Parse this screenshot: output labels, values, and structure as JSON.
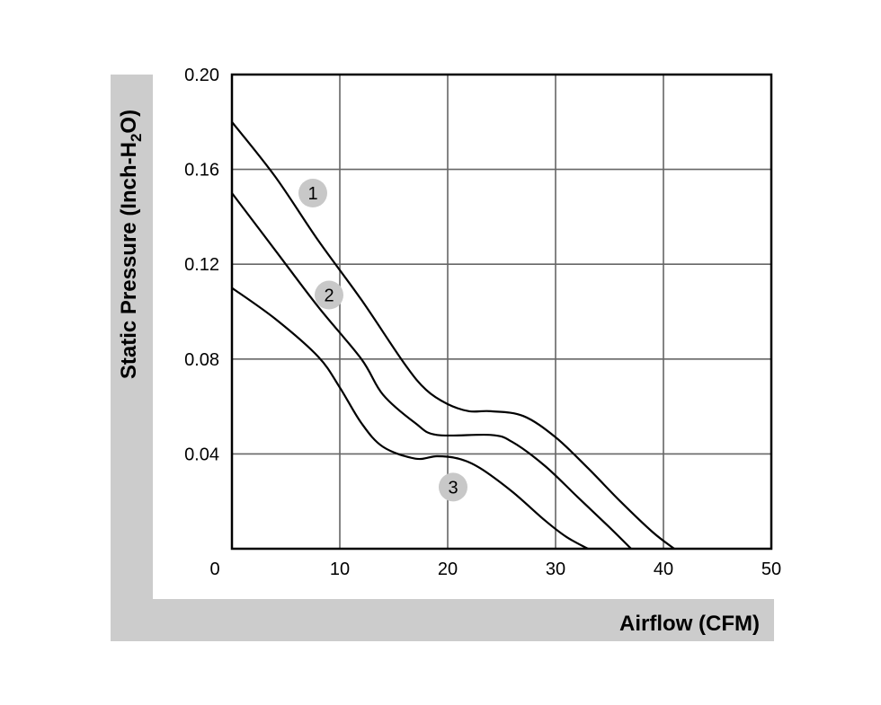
{
  "chart_data": {
    "type": "line",
    "xlabel": "Airflow (CFM)",
    "ylabel": {
      "main": "Static Pressure (Inch-H",
      "sub": "2",
      "end": "O)"
    },
    "xlim": [
      0,
      50
    ],
    "ylim": [
      0,
      0.2
    ],
    "x_ticks": [
      "0",
      "10",
      "20",
      "30",
      "40",
      "50"
    ],
    "y_ticks": [
      "0.04",
      "0.08",
      "0.12",
      "0.16",
      "0.20"
    ],
    "grid": true,
    "colors": {
      "frame": "#cccccc",
      "grid": "#666666",
      "curve": "#000000",
      "badge": "#c8c8c8"
    },
    "series": [
      {
        "label": "1",
        "label_at": [
          7.5,
          0.15
        ],
        "points": [
          [
            0,
            0.18
          ],
          [
            4,
            0.157
          ],
          [
            8,
            0.13
          ],
          [
            12,
            0.105
          ],
          [
            16,
            0.078
          ],
          [
            18,
            0.067
          ],
          [
            20,
            0.061
          ],
          [
            22,
            0.058
          ],
          [
            24,
            0.058
          ],
          [
            27,
            0.056
          ],
          [
            30,
            0.047
          ],
          [
            33,
            0.034
          ],
          [
            36,
            0.02
          ],
          [
            39,
            0.007
          ],
          [
            41,
            0.0
          ]
        ]
      },
      {
        "label": "2",
        "label_at": [
          9,
          0.107
        ],
        "points": [
          [
            0,
            0.15
          ],
          [
            4,
            0.126
          ],
          [
            8,
            0.102
          ],
          [
            12,
            0.08
          ],
          [
            14,
            0.065
          ],
          [
            17,
            0.053
          ],
          [
            19,
            0.048
          ],
          [
            24,
            0.048
          ],
          [
            26,
            0.045
          ],
          [
            29,
            0.035
          ],
          [
            32,
            0.022
          ],
          [
            35,
            0.009
          ],
          [
            37,
            0.0
          ]
        ]
      },
      {
        "label": "3",
        "label_at": [
          20.5,
          0.026
        ],
        "points": [
          [
            0,
            0.11
          ],
          [
            4,
            0.097
          ],
          [
            8,
            0.081
          ],
          [
            10,
            0.068
          ],
          [
            12,
            0.053
          ],
          [
            14,
            0.043
          ],
          [
            17,
            0.038
          ],
          [
            19,
            0.039
          ],
          [
            21,
            0.038
          ],
          [
            23,
            0.034
          ],
          [
            26,
            0.024
          ],
          [
            29,
            0.012
          ],
          [
            31,
            0.005
          ],
          [
            33,
            0.0
          ]
        ]
      }
    ]
  }
}
